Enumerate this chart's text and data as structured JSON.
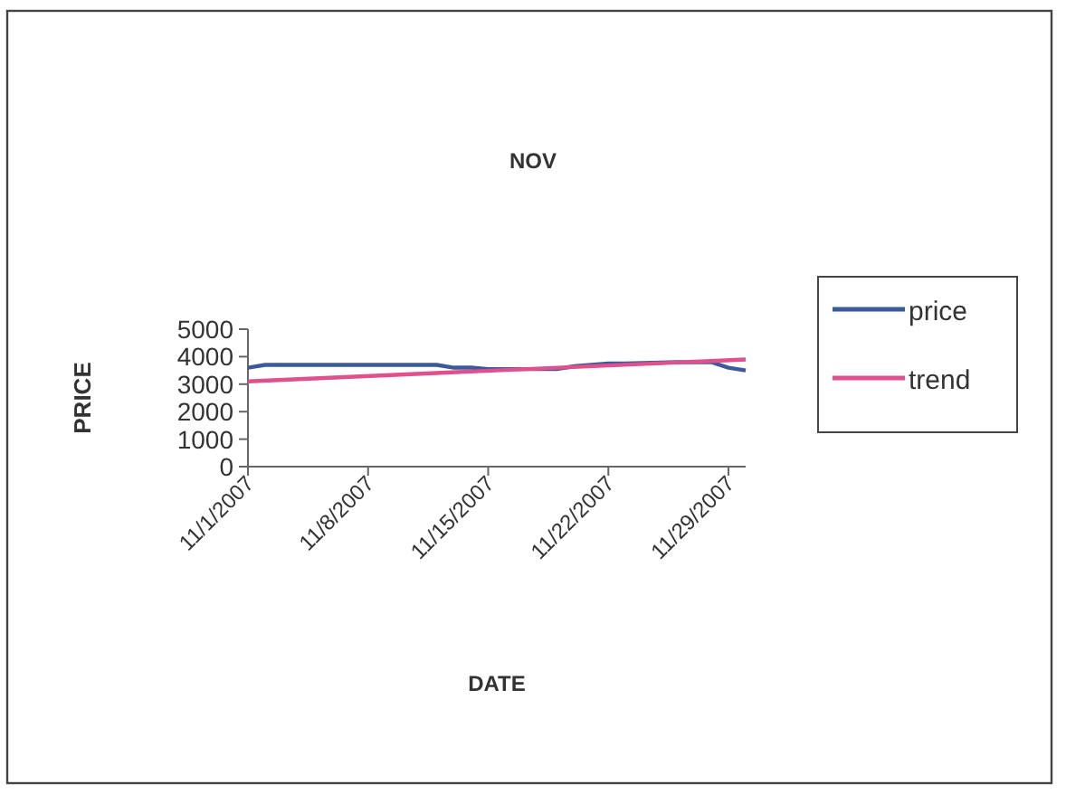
{
  "chart_data": {
    "type": "line",
    "title": "NOV",
    "xlabel": "DATE",
    "ylabel": "PRICE",
    "xlim": [
      "2007-11-01",
      "2007-11-30"
    ],
    "ylim": [
      0,
      5000
    ],
    "yticks": [
      0,
      1000,
      2000,
      3000,
      4000,
      5000
    ],
    "xticks": [
      {
        "value": "2007-11-01",
        "label": "11/1/2007"
      },
      {
        "value": "2007-11-08",
        "label": "11/8/2007"
      },
      {
        "value": "2007-11-15",
        "label": "11/15/2007"
      },
      {
        "value": "2007-11-22",
        "label": "11/22/2007"
      },
      {
        "value": "2007-11-29",
        "label": "11/29/2007"
      }
    ],
    "legend": "right",
    "grid": false,
    "series": [
      {
        "name": "price",
        "color": "#3c5a9a",
        "x": [
          "2007-11-01",
          "2007-11-02",
          "2007-11-05",
          "2007-11-06",
          "2007-11-07",
          "2007-11-08",
          "2007-11-09",
          "2007-11-12",
          "2007-11-13",
          "2007-11-14",
          "2007-11-15",
          "2007-11-16",
          "2007-11-19",
          "2007-11-20",
          "2007-11-21",
          "2007-11-22",
          "2007-11-23",
          "2007-11-26",
          "2007-11-27",
          "2007-11-28",
          "2007-11-29",
          "2007-11-30"
        ],
        "values": [
          3600,
          3700,
          3700,
          3700,
          3700,
          3700,
          3700,
          3700,
          3600,
          3600,
          3550,
          3550,
          3550,
          3650,
          3700,
          3750,
          3750,
          3800,
          3800,
          3800,
          3600,
          3500
        ]
      },
      {
        "name": "trend",
        "color": "#e0508c",
        "x": [
          "2007-11-01",
          "2007-11-30"
        ],
        "values": [
          3100,
          3900
        ]
      }
    ]
  }
}
